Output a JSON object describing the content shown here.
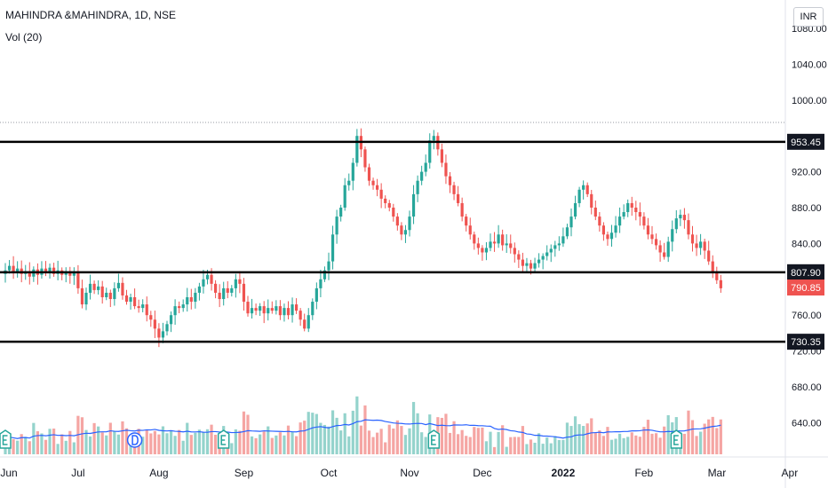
{
  "header": {
    "title": "MAHINDRA &MAHINDRA, 1D, NSE",
    "volume_label": "Vol (20)",
    "currency_button": "INR"
  },
  "colors": {
    "up": "#26a69a",
    "down": "#ef5350",
    "volume_up": "#94d3cc",
    "volume_down": "#f5a5a3",
    "volume_ma": "#2962ff",
    "level_line": "#000000",
    "last_price_label": "#ef5350",
    "axis_text": "#131722"
  },
  "icons": [
    "earnings-marker-icon",
    "dividend-marker-icon"
  ],
  "chart_data": {
    "type": "candlestick",
    "title": "MAHINDRA &MAHINDRA, 1D, NSE",
    "y_axis": {
      "side": "right",
      "range": [
        600,
        1080
      ],
      "ticks": [
        1080.0,
        1040.0,
        1000.0,
        920.0,
        880.0,
        840.0,
        760.0,
        720.0,
        680.0,
        640.0
      ]
    },
    "x_axis": {
      "labels": [
        "Jun",
        "Jul",
        "Aug",
        "Sep",
        "Oct",
        "Nov",
        "Dec",
        "2022",
        "Feb",
        "Mar",
        "Apr"
      ]
    },
    "horizontal_levels": [
      {
        "label": "953.45",
        "value": 953.45
      },
      {
        "label": "807.90",
        "value": 807.9
      },
      {
        "label": "730.35",
        "value": 730.35
      }
    ],
    "last_price": {
      "label": "790.85",
      "value": 790.85
    },
    "dotted_high_line": 975,
    "series": [
      {
        "label": "Jun",
        "close": [
          810,
          815,
          808,
          812,
          806,
          809,
          803,
          811,
          805,
          812,
          808,
          813,
          806,
          810,
          805,
          809,
          804,
          808
        ]
      },
      {
        "label": "Jul",
        "close": [
          790,
          772,
          785,
          795,
          788,
          792,
          780,
          785,
          778,
          790,
          796,
          782,
          775,
          780,
          770,
          768,
          772,
          760,
          755,
          745
        ]
      },
      {
        "label": "Aug",
        "close": [
          735,
          742,
          750,
          760,
          770,
          768,
          772,
          780,
          775,
          785,
          792,
          800,
          805,
          795,
          785,
          778,
          790,
          785,
          790,
          800,
          795
        ]
      },
      {
        "label": "Sep",
        "close": [
          775,
          762,
          768,
          765,
          770,
          762,
          768,
          765,
          770,
          760,
          768,
          760,
          772,
          765,
          755,
          745,
          760,
          775,
          790,
          800,
          810
        ]
      },
      {
        "label": "Oct",
        "close": [
          820,
          850,
          870,
          880,
          905,
          910,
          930,
          960,
          945,
          925,
          910,
          905,
          900,
          890,
          885,
          880,
          870,
          860,
          850,
          855
        ]
      },
      {
        "label": "Nov",
        "close": [
          870,
          895,
          910,
          920,
          930,
          955,
          960,
          945,
          930,
          915,
          905,
          895,
          885,
          870,
          860,
          850,
          840,
          835
        ]
      },
      {
        "label": "Dec",
        "close": [
          830,
          835,
          842,
          840,
          850,
          838,
          840,
          835,
          828,
          822,
          815,
          818,
          812,
          818,
          822,
          826,
          830,
          834,
          838,
          840
        ]
      },
      {
        "label": "2022",
        "close": [
          848,
          858,
          870,
          885,
          900,
          905,
          895,
          880,
          870,
          860,
          850,
          845,
          852,
          860,
          870,
          875,
          885,
          880,
          875,
          870
        ]
      },
      {
        "label": "Feb",
        "close": [
          860,
          850,
          845,
          838,
          830,
          825,
          842,
          856,
          868,
          872,
          866,
          850,
          840,
          835,
          842,
          832,
          820,
          808,
          799,
          790
        ]
      }
    ],
    "volume": {
      "ma_period": 20
    }
  }
}
